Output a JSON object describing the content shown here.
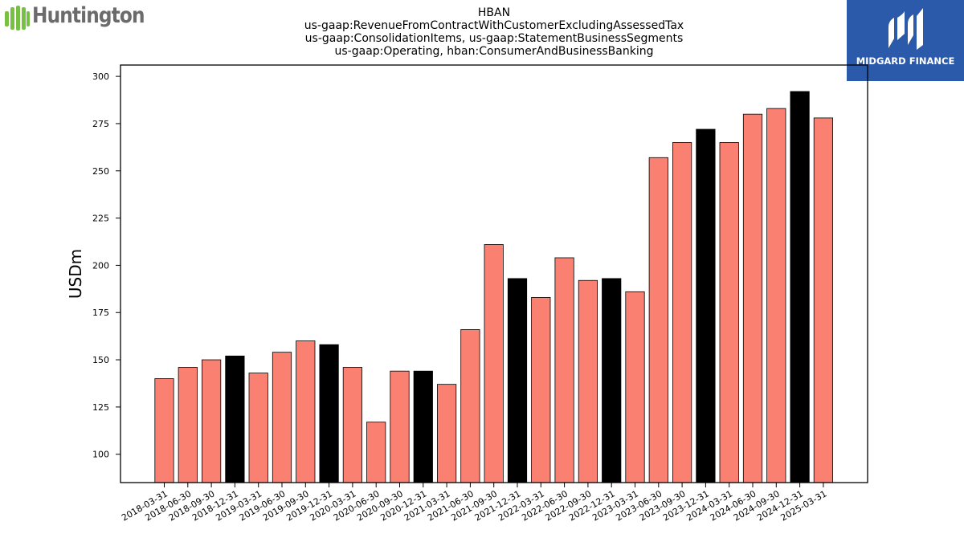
{
  "logos": {
    "left_text": "Huntington",
    "right_text": "MIDGARD FINANCE",
    "left_color": "#78c043",
    "right_bg": "#2b5aaa"
  },
  "chart_data": {
    "type": "bar",
    "title": [
      "HBAN",
      "us-gaap:RevenueFromContractWithCustomerExcludingAssessedTax",
      "us-gaap:ConsolidationItems, us-gaap:StatementBusinessSegments",
      "us-gaap:Operating, hban:ConsumerAndBusinessBanking"
    ],
    "xlabel": "",
    "ylabel": "USDm",
    "ylim": [
      85,
      306
    ],
    "yticks": [
      100,
      125,
      150,
      175,
      200,
      225,
      250,
      275,
      300
    ],
    "grid": false,
    "categories": [
      "2018-03-31",
      "2018-06-30",
      "2018-09-30",
      "2018-12-31",
      "2019-03-31",
      "2019-06-30",
      "2019-09-30",
      "2019-12-31",
      "2020-03-31",
      "2020-06-30",
      "2020-09-30",
      "2020-12-31",
      "2021-03-31",
      "2021-06-30",
      "2021-09-30",
      "2021-12-31",
      "2022-03-31",
      "2022-06-30",
      "2022-09-30",
      "2022-12-31",
      "2023-03-31",
      "2023-06-30",
      "2023-09-30",
      "2023-12-31",
      "2024-03-31",
      "2024-06-30",
      "2024-09-30",
      "2024-12-31",
      "2025-03-31"
    ],
    "values": [
      140,
      146,
      150,
      152,
      143,
      154,
      160,
      158,
      146,
      117,
      144,
      144,
      137,
      166,
      211,
      193,
      183,
      204,
      192,
      193,
      186,
      257,
      265,
      272,
      265,
      280,
      283,
      292,
      278
    ],
    "colors": {
      "quarter": "#fa8072",
      "year_end": "#000000",
      "edge": "#000000"
    }
  }
}
